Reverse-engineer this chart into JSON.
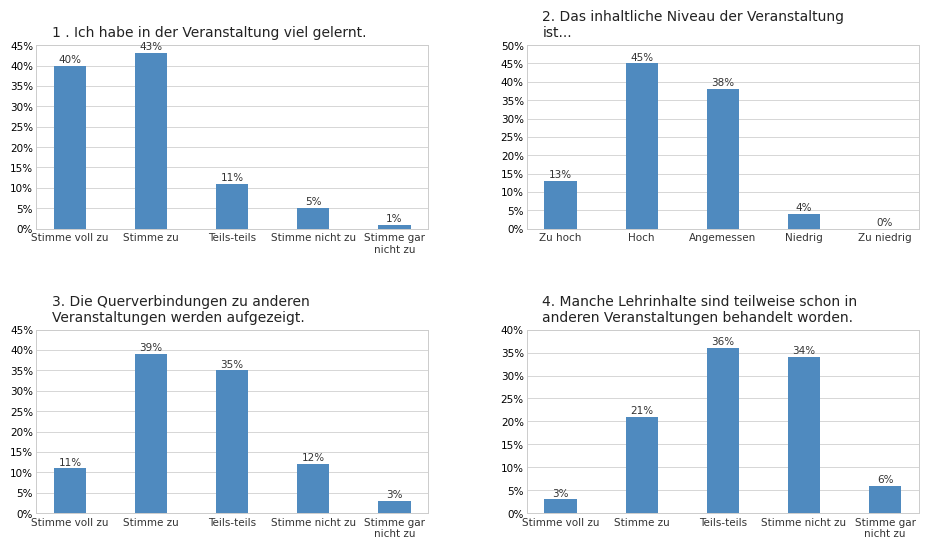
{
  "charts": [
    {
      "title": "1 . Ich habe in der Veranstaltung viel gelernt.",
      "categories": [
        "Stimme voll zu",
        "Stimme zu",
        "Teils-teils",
        "Stimme nicht zu",
        "Stimme gar\nnicht zu"
      ],
      "values": [
        40,
        43,
        11,
        5,
        1
      ],
      "ylim": [
        0,
        45
      ],
      "yticks": [
        0,
        5,
        10,
        15,
        20,
        25,
        30,
        35,
        40,
        45
      ]
    },
    {
      "title": "2. Das inhaltliche Niveau der Veranstaltung\nist...",
      "categories": [
        "Zu hoch",
        "Hoch",
        "Angemessen",
        "Niedrig",
        "Zu niedrig"
      ],
      "values": [
        13,
        45,
        38,
        4,
        0
      ],
      "ylim": [
        0,
        50
      ],
      "yticks": [
        0,
        5,
        10,
        15,
        20,
        25,
        30,
        35,
        40,
        45,
        50
      ]
    },
    {
      "title": "3. Die Querverbindungen zu anderen\nVeranstaltungen werden aufgezeigt.",
      "categories": [
        "Stimme voll zu",
        "Stimme zu",
        "Teils-teils",
        "Stimme nicht zu",
        "Stimme gar\nnicht zu"
      ],
      "values": [
        11,
        39,
        35,
        12,
        3
      ],
      "ylim": [
        0,
        45
      ],
      "yticks": [
        0,
        5,
        10,
        15,
        20,
        25,
        30,
        35,
        40,
        45
      ]
    },
    {
      "title": "4. Manche Lehrinhalte sind teilweise schon in\nanderen Veranstaltungen behandelt worden.",
      "categories": [
        "Stimme voll zu",
        "Stimme zu",
        "Teils-teils",
        "Stimme nicht zu",
        "Stimme gar\nnicht zu"
      ],
      "values": [
        3,
        21,
        36,
        34,
        6
      ],
      "ylim": [
        0,
        40
      ],
      "yticks": [
        0,
        5,
        10,
        15,
        20,
        25,
        30,
        35,
        40
      ]
    }
  ],
  "bar_color": "#4f8abf",
  "background_color": "#ffffff",
  "grid_color": "#d0d0d0",
  "border_color": "#cccccc",
  "title_fontsize": 10,
  "label_fontsize": 7.5,
  "tick_fontsize": 7.5,
  "value_fontsize": 7.5
}
